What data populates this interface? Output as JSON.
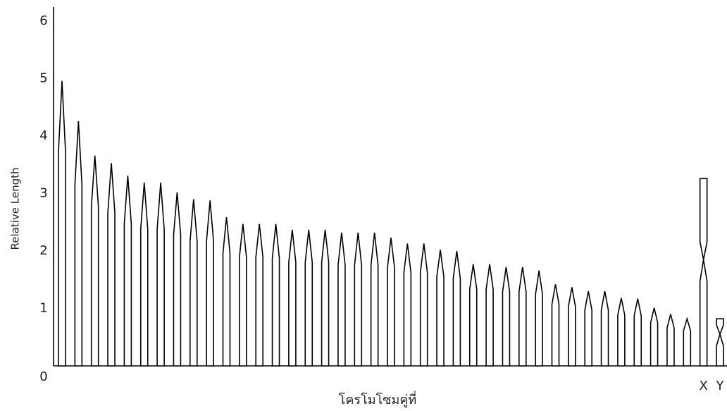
{
  "chart_data": {
    "type": "idiogram",
    "y_label": "Relative Length",
    "x_label": "โครโมโซมคู่ที่",
    "categories": [
      null,
      null,
      null,
      null,
      null,
      null,
      null,
      null,
      null,
      null,
      null,
      null,
      null,
      null,
      null,
      null,
      null,
      null,
      null,
      null,
      null,
      null,
      null,
      null,
      null,
      null,
      null,
      null,
      null,
      null,
      null,
      null,
      null,
      null,
      null,
      null,
      null,
      null,
      null,
      "X",
      "Y"
    ],
    "values": [
      4.96,
      4.26,
      3.66,
      3.53,
      3.31,
      3.19,
      3.19,
      3.02,
      2.9,
      2.88,
      2.59,
      2.47,
      2.47,
      2.47,
      2.37,
      2.37,
      2.37,
      2.32,
      2.32,
      2.32,
      2.23,
      2.13,
      2.13,
      2.02,
      2.0,
      1.77,
      1.77,
      1.72,
      1.72,
      1.66,
      1.42,
      1.37,
      1.3,
      1.3,
      1.18,
      1.17,
      1.01,
      0.9,
      0.82,
      3.26,
      0.82
    ],
    "shoulders": [
      3.73,
      3.15,
      2.77,
      2.66,
      2.47,
      2.38,
      2.38,
      2.28,
      2.17,
      2.17,
      1.96,
      1.89,
      1.89,
      1.87,
      1.8,
      1.8,
      1.8,
      1.75,
      1.75,
      1.75,
      1.71,
      1.62,
      1.62,
      1.55,
      1.52,
      1.33,
      1.33,
      1.29,
      1.29,
      1.24,
      1.07,
      1.03,
      0.97,
      0.97,
      0.88,
      0.87,
      0.75,
      0.66,
      0.61,
      null,
      null
    ],
    "centromeres": [
      null,
      null,
      null,
      null,
      null,
      null,
      null,
      null,
      null,
      null,
      null,
      null,
      null,
      null,
      null,
      null,
      null,
      null,
      null,
      null,
      null,
      null,
      null,
      null,
      null,
      null,
      null,
      null,
      null,
      null,
      null,
      null,
      null,
      null,
      null,
      null,
      null,
      null,
      null,
      1.85,
      0.55
    ],
    "color": "#000000",
    "ylim": [
      0,
      6
    ],
    "yticks": [
      0,
      1,
      2,
      3,
      4,
      5,
      6
    ]
  }
}
